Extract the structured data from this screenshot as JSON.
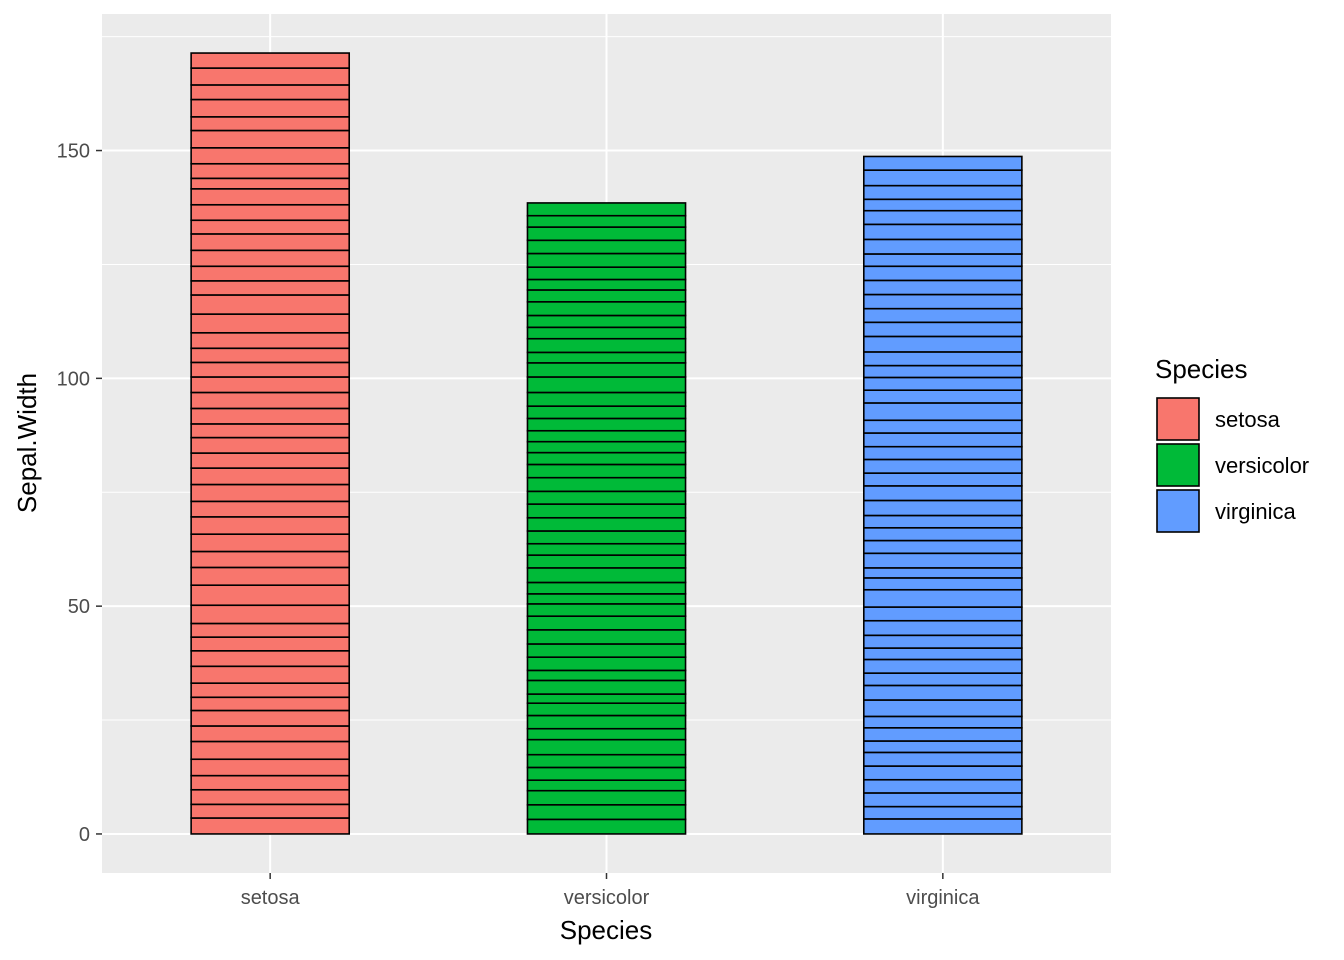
{
  "chart_data": {
    "type": "bar",
    "categories": [
      "setosa",
      "versicolor",
      "virginica"
    ],
    "segment_values": {
      "setosa": [
        3.5,
        3.0,
        3.2,
        3.1,
        3.6,
        3.9,
        3.4,
        3.4,
        2.9,
        3.1,
        3.7,
        3.4,
        3.0,
        3.0,
        4.0,
        4.4,
        3.9,
        3.5,
        3.8,
        3.8,
        3.4,
        3.7,
        3.6,
        3.3,
        3.4,
        3.0,
        3.4,
        3.5,
        3.4,
        3.2,
        3.1,
        3.4,
        4.1,
        4.2,
        3.1,
        3.2,
        3.5,
        3.6,
        3.0,
        3.4,
        3.5,
        2.3,
        3.2,
        3.5,
        3.8,
        3.0,
        3.8,
        3.2,
        3.7,
        3.3
      ],
      "versicolor": [
        3.2,
        3.2,
        3.1,
        2.3,
        2.8,
        2.8,
        3.3,
        2.4,
        2.9,
        2.7,
        2.0,
        3.0,
        2.2,
        2.9,
        2.9,
        3.1,
        3.0,
        2.7,
        2.2,
        2.5,
        3.2,
        2.8,
        2.5,
        2.8,
        2.9,
        3.0,
        2.8,
        3.0,
        2.9,
        2.6,
        2.4,
        2.4,
        2.7,
        2.7,
        3.0,
        3.4,
        3.1,
        2.3,
        3.0,
        2.5,
        2.6,
        3.0,
        2.6,
        2.3,
        2.7,
        3.0,
        2.9,
        2.9,
        2.5,
        2.8
      ],
      "virginica": [
        3.3,
        2.7,
        3.0,
        2.9,
        3.0,
        3.0,
        2.5,
        2.9,
        2.5,
        3.6,
        3.2,
        2.7,
        3.0,
        2.5,
        2.8,
        3.2,
        3.0,
        3.8,
        2.6,
        2.2,
        3.2,
        2.8,
        2.8,
        2.7,
        3.3,
        3.2,
        2.8,
        3.0,
        2.8,
        3.0,
        2.8,
        3.8,
        2.8,
        2.8,
        2.6,
        3.0,
        3.4,
        3.1,
        3.0,
        3.1,
        3.1,
        3.1,
        2.7,
        3.2,
        3.3,
        3.0,
        2.5,
        3.0,
        3.4,
        3.0
      ]
    },
    "values": [
      171.4,
      138.5,
      148.7
    ],
    "colors": {
      "setosa": "#F8766D",
      "versicolor": "#00BA38",
      "virginica": "#619CFF"
    },
    "xlabel": "Species",
    "ylabel": "Sepal.Width",
    "ylim": [
      -8.57,
      179.97
    ],
    "yticks": [
      0,
      50,
      100,
      150
    ],
    "ytick_labels": [
      "0",
      "50",
      "100",
      "150"
    ],
    "grid": true,
    "legend": {
      "title": "Species",
      "entries": [
        "setosa",
        "versicolor",
        "virginica"
      ],
      "position": "right"
    },
    "panel_background": "#EBEBEB",
    "grid_color": "#FFFFFF",
    "bar_outline": "#000000"
  }
}
